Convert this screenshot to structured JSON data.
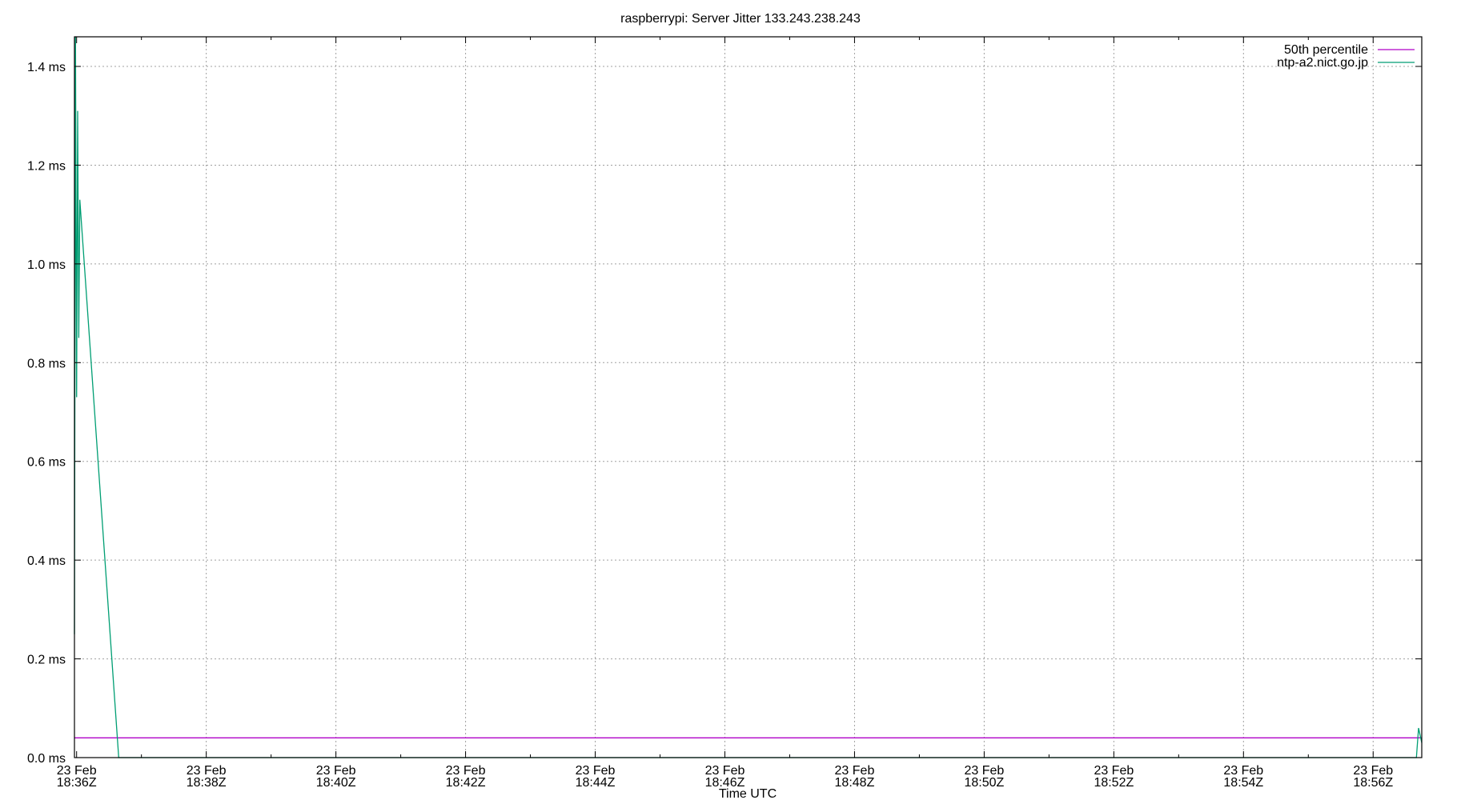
{
  "chart_data": {
    "type": "line",
    "title": "raspberrypi: Server Jitter 133.243.238.243",
    "xlabel": "Time UTC",
    "ylabel": "",
    "ylim": [
      0,
      1.46
    ],
    "grid": true,
    "legend_position": "top-right",
    "x_ticks": [
      {
        "t": "18:36",
        "line1": "23 Feb",
        "line2": "18:36Z"
      },
      {
        "t": "18:38",
        "line1": "23 Feb",
        "line2": "18:38Z"
      },
      {
        "t": "18:40",
        "line1": "23 Feb",
        "line2": "18:40Z"
      },
      {
        "t": "18:42",
        "line1": "23 Feb",
        "line2": "18:42Z"
      },
      {
        "t": "18:44",
        "line1": "23 Feb",
        "line2": "18:44Z"
      },
      {
        "t": "18:46",
        "line1": "23 Feb",
        "line2": "18:46Z"
      },
      {
        "t": "18:48",
        "line1": "23 Feb",
        "line2": "18:48Z"
      },
      {
        "t": "18:50",
        "line1": "23 Feb",
        "line2": "18:50Z"
      },
      {
        "t": "18:52",
        "line1": "23 Feb",
        "line2": "18:52Z"
      },
      {
        "t": "18:54",
        "line1": "23 Feb",
        "line2": "18:54Z"
      },
      {
        "t": "18:56",
        "line1": "23 Feb",
        "line2": "18:56Z"
      }
    ],
    "x_range": [
      "18:35:58",
      "18:56:45"
    ],
    "y_ticks": [
      {
        "value": 0.0,
        "label": "0.0 ms"
      },
      {
        "value": 0.2,
        "label": "0.2 ms"
      },
      {
        "value": 0.4,
        "label": "0.4 ms"
      },
      {
        "value": 0.6,
        "label": "0.6 ms"
      },
      {
        "value": 0.8,
        "label": "0.8 ms"
      },
      {
        "value": 1.0,
        "label": "1.0 ms"
      },
      {
        "value": 1.2,
        "label": "1.2 ms"
      },
      {
        "value": 1.4,
        "label": "1.4 ms"
      }
    ],
    "series": [
      {
        "name": "50th percentile",
        "color": "#b000c8",
        "points": [
          [
            "18:35:58",
            0.04
          ],
          [
            "18:56:45",
            0.04
          ]
        ]
      },
      {
        "name": "ntp-a2.nict.go.jp",
        "color": "#009e73",
        "points": [
          [
            "18:35:58",
            0.25
          ],
          [
            "18:35:59",
            1.46
          ],
          [
            "18:36:00",
            0.73
          ],
          [
            "18:36:01",
            1.31
          ],
          [
            "18:36:02",
            0.85
          ],
          [
            "18:36:03",
            1.13
          ],
          [
            "18:36:39",
            0.0
          ],
          [
            "18:56:40",
            0.0
          ],
          [
            "18:56:42",
            0.06
          ],
          [
            "18:56:45",
            0.03
          ]
        ]
      }
    ]
  }
}
